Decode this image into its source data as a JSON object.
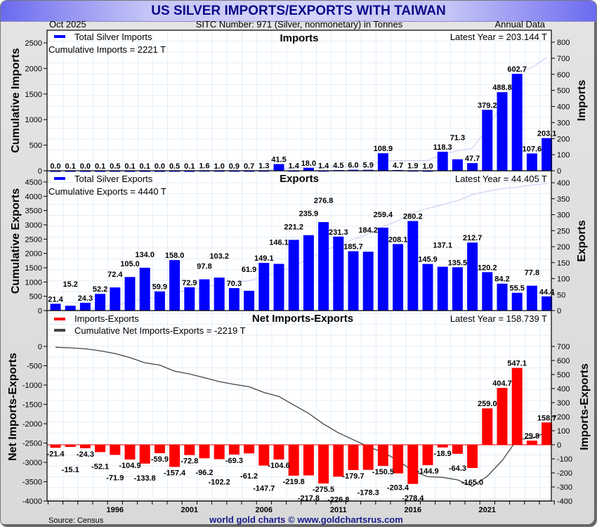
{
  "header": {
    "title": "US SILVER IMPORTS/EXPORTS WITH TAIWAN",
    "date": "Oct  2025",
    "subtitle": "SITC Number: 971 (Silver, nonmonetary) in Tonnes",
    "frequency": "Annual Data"
  },
  "footer": {
    "source": "Source: Census",
    "credit": "world gold charts © www.goldchartsrus.com"
  },
  "colors": {
    "imports": "#0000ff",
    "exports": "#0000ff",
    "net": "#ff0000",
    "cumulative_line": "#c8c8f4",
    "net_cumulative_line": "#444444",
    "grid": "#e0ecf8"
  },
  "chart_data": [
    {
      "type": "bar",
      "title": "Imports",
      "legend": "Total Silver Imports",
      "cumulative_label": "Cumulative Imports = 2221 T",
      "latest_label": "Latest Year = 203.144 T",
      "ylabel_left": "Cumulative Imports",
      "ylabel_right": "Imports",
      "ylim_left": [
        0,
        2500
      ],
      "ylim_right": [
        0,
        800
      ],
      "yticks_left": [
        "0",
        "500",
        "1000",
        "1500",
        "2000",
        "2500"
      ],
      "yticks_right": [
        "0",
        "100",
        "200",
        "300",
        "400",
        "500",
        "600",
        "700",
        "800"
      ],
      "x": [
        1992,
        1993,
        1994,
        1995,
        1996,
        1997,
        1998,
        1999,
        2000,
        2001,
        2002,
        2003,
        2004,
        2005,
        2006,
        2007,
        2008,
        2009,
        2010,
        2011,
        2012,
        2013,
        2014,
        2015,
        2016,
        2017,
        2018,
        2019,
        2020,
        2021,
        2022,
        2023,
        2024,
        2025
      ],
      "values": [
        0.0,
        0.1,
        0.0,
        0.1,
        0.5,
        0.1,
        0.1,
        0.0,
        0.5,
        0.1,
        1.6,
        1.0,
        0.9,
        0.7,
        1.3,
        41.5,
        1.4,
        18.0,
        1.4,
        4.5,
        6.0,
        5.9,
        108.9,
        4.7,
        1.9,
        1.0,
        118.3,
        71.3,
        47.7,
        379.2,
        488.8,
        602.7,
        107.6,
        203.1
      ],
      "labels": [
        "0.0",
        "0.1",
        "0.0",
        "0.1",
        "0.5",
        "0.1",
        "0.1",
        "0.0",
        "0.5",
        "0.1",
        "1.6",
        "1.0",
        "0.9",
        "0.7",
        "1.3",
        "41.5",
        "1.4",
        "18.0",
        "1.4",
        "4.5",
        "6.0",
        "5.9",
        "108.9",
        "4.7",
        "1.9",
        "1.0",
        "118.3",
        "71.3",
        "47.7",
        "379.2",
        "488.8",
        "602.7",
        "107.6",
        "203.1"
      ]
    },
    {
      "type": "bar",
      "title": "Exports",
      "legend": "Total Silver Exports",
      "cumulative_label": "Cumulative Exports = 4440 T",
      "latest_label": "Latest Year = 44.405 T",
      "ylabel_left": "Cumulative Exports",
      "ylabel_right": "Exports",
      "ylim_left": [
        0,
        4500
      ],
      "ylim_right": [
        0,
        400
      ],
      "yticks_left": [
        "0",
        "500",
        "1000",
        "1500",
        "2000",
        "2500",
        "3000",
        "3500",
        "4000",
        "4500"
      ],
      "yticks_right": [
        "0",
        "50",
        "100",
        "150",
        "200",
        "250",
        "300",
        "350",
        "400"
      ],
      "x": [
        1992,
        1993,
        1994,
        1995,
        1996,
        1997,
        1998,
        1999,
        2000,
        2001,
        2002,
        2003,
        2004,
        2005,
        2006,
        2007,
        2008,
        2009,
        2010,
        2011,
        2012,
        2013,
        2014,
        2015,
        2016,
        2017,
        2018,
        2019,
        2020,
        2021,
        2022,
        2023,
        2024,
        2025
      ],
      "values": [
        21.4,
        15.2,
        24.3,
        52.2,
        72.4,
        105.0,
        134.0,
        59.9,
        158.0,
        72.9,
        97.8,
        103.2,
        70.3,
        61.9,
        149.1,
        146.1,
        221.2,
        235.9,
        276.8,
        231.3,
        185.7,
        184.2,
        259.4,
        208.1,
        280.2,
        145.9,
        137.1,
        135.5,
        212.7,
        120.2,
        84.2,
        55.5,
        77.8,
        44.4
      ],
      "labels": [
        "21.4",
        "15.2",
        "24.3",
        "52.2",
        "72.4",
        "105.0",
        "134.0",
        "59.9",
        "158.0",
        "72.9",
        "97.8",
        "103.2",
        "70.3",
        "61.9",
        "149.1",
        "146.1",
        "221.2",
        "235.9",
        "276.8",
        "231.3",
        "185.7",
        "184.2",
        "259.4",
        "208.1",
        "280.2",
        "145.9",
        "137.1",
        "135.5",
        "212.7",
        "120.2",
        "84.2",
        "55.5",
        "77.8",
        "44.4"
      ]
    },
    {
      "type": "bar",
      "title": "Net Imports-Exports",
      "legend": "Imports-Exports",
      "legend2": "Cumulative Net Imports-Exports = -2219 T",
      "latest_label": "Latest Year = 158.739 T",
      "ylabel_left": "Net Imports-Exports",
      "ylabel_right": "Imports-Exports",
      "ylim_left": [
        -4000,
        0
      ],
      "ylim_right": [
        -400,
        700
      ],
      "yticks_left": [
        "-4000",
        "-3500",
        "-3000",
        "-2500",
        "-2000",
        "-1500",
        "-1000",
        "-500",
        "0"
      ],
      "yticks_right": [
        "-400",
        "-300",
        "-200",
        "-100",
        "0",
        "100",
        "200",
        "300",
        "400",
        "500",
        "600",
        "700"
      ],
      "x": [
        1992,
        1993,
        1994,
        1995,
        1996,
        1997,
        1998,
        1999,
        2000,
        2001,
        2002,
        2003,
        2004,
        2005,
        2006,
        2007,
        2008,
        2009,
        2010,
        2011,
        2012,
        2013,
        2014,
        2015,
        2016,
        2017,
        2018,
        2019,
        2020,
        2021,
        2022,
        2023,
        2024,
        2025
      ],
      "values": [
        -21.4,
        -15.1,
        -24.3,
        -52.1,
        -71.9,
        -104.9,
        -133.8,
        -59.9,
        -157.4,
        -72.8,
        -96.2,
        -102.2,
        -69.3,
        -61.2,
        -147.7,
        -104.6,
        -219.8,
        -217.8,
        -275.5,
        -226.8,
        -179.7,
        -178.3,
        -150.5,
        -203.4,
        -278.4,
        -144.9,
        -18.9,
        -64.3,
        -165.0,
        259.0,
        404.7,
        547.1,
        29.8,
        158.7
      ],
      "labels": [
        "-21.4",
        "-15.1",
        "-24.3",
        "-52.1",
        "-71.9",
        "-104.9",
        "-133.8",
        "-59.9",
        "-157.4",
        "-72.8",
        "-96.2",
        "-102.2",
        "-69.3",
        "-61.2",
        "-147.7",
        "-104.6",
        "-219.8",
        "-217.8",
        "-275.5",
        "-226.8",
        "-179.7",
        "-178.3",
        "-150.5",
        "-203.4",
        "-278.4",
        "-144.9",
        "-18.9",
        "-64.3",
        "-165.0",
        "259.0",
        "404.7",
        "547.1",
        "29.8",
        "158.7"
      ],
      "xtick_labels": [
        "1996",
        "2001",
        "2006",
        "2011",
        "2016",
        "2021"
      ],
      "xtick_values": [
        1996,
        2001,
        2006,
        2011,
        2016,
        2021
      ]
    }
  ]
}
